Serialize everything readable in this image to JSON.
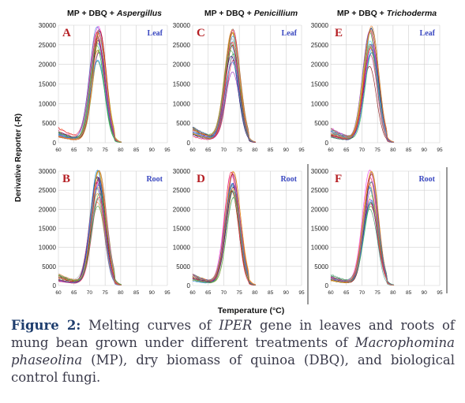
{
  "figure": {
    "ylabel": "Derivative Reporter (-R)",
    "xlabel": "Temperature (°C)"
  },
  "chart_data": [
    {
      "type": "line",
      "panel_letter": "A",
      "tissue": "Leaf",
      "column_title_prefix": "MP + DBQ + ",
      "column_title_fungus": "Aspergillus",
      "xlim": [
        60,
        95
      ],
      "ylim": [
        0,
        30000
      ],
      "x_ticks": [
        60,
        65,
        70,
        75,
        80,
        85,
        90,
        95
      ],
      "y_ticks": [
        0,
        5000,
        10000,
        15000,
        20000,
        25000,
        30000
      ],
      "peak_temperature": 72.8,
      "peak_max": 29500,
      "peak_min": 19000,
      "baseline_max": 4000,
      "grid": true
    },
    {
      "type": "line",
      "panel_letter": "C",
      "tissue": "Leaf",
      "column_title_prefix": "MP + DBQ + ",
      "column_title_fungus": "Penicillium",
      "xlim": [
        60,
        95
      ],
      "ylim": [
        0,
        30000
      ],
      "x_ticks": [
        60,
        65,
        70,
        75,
        80,
        85,
        90,
        95
      ],
      "y_ticks": [
        0,
        5000,
        10000,
        15000,
        20000,
        25000,
        30000
      ],
      "peak_temperature": 72.8,
      "peak_max": 29500,
      "peak_min": 17000,
      "baseline_max": 4200,
      "grid": true
    },
    {
      "type": "line",
      "panel_letter": "E",
      "tissue": "Leaf",
      "column_title_prefix": "MP + DBQ + ",
      "column_title_fungus": "Trichoderma",
      "xlim": [
        60,
        95
      ],
      "ylim": [
        0,
        30000
      ],
      "x_ticks": [
        60,
        65,
        70,
        75,
        80,
        85,
        90,
        95
      ],
      "y_ticks": [
        0,
        5000,
        10000,
        15000,
        20000,
        25000,
        30000
      ],
      "peak_temperature": 72.8,
      "peak_max": 29500,
      "peak_min": 18000,
      "baseline_max": 4000,
      "grid": true
    },
    {
      "type": "line",
      "panel_letter": "B",
      "tissue": "Root",
      "xlim": [
        60,
        95
      ],
      "ylim": [
        0,
        30000
      ],
      "x_ticks": [
        60,
        65,
        70,
        75,
        80,
        85,
        90,
        95
      ],
      "y_ticks": [
        0,
        5000,
        10000,
        15000,
        20000,
        25000,
        30000
      ],
      "peak_temperature": 72.8,
      "peak_max": 30500,
      "peak_min": 20000,
      "baseline_max": 3000,
      "grid": true
    },
    {
      "type": "line",
      "panel_letter": "D",
      "tissue": "Root",
      "xlim": [
        60,
        95
      ],
      "ylim": [
        0,
        30000
      ],
      "x_ticks": [
        60,
        65,
        70,
        75,
        80,
        85,
        90,
        95
      ],
      "y_ticks": [
        0,
        5000,
        10000,
        15000,
        20000,
        25000,
        30000
      ],
      "peak_temperature": 72.8,
      "peak_max": 30000,
      "peak_min": 20000,
      "baseline_max": 3000,
      "grid": true
    },
    {
      "type": "line",
      "panel_letter": "F",
      "tissue": "Root",
      "xlim": [
        60,
        95
      ],
      "ylim": [
        0,
        30000
      ],
      "x_ticks": [
        60,
        65,
        70,
        75,
        80,
        85,
        90,
        95
      ],
      "y_ticks": [
        0,
        5000,
        10000,
        15000,
        20000,
        25000,
        30000
      ],
      "peak_temperature": 72.8,
      "peak_max": 30000,
      "peak_min": 19000,
      "baseline_max": 3000,
      "grid": true
    }
  ],
  "colors": {
    "panel_letter": "#b51f24",
    "tissue_label": "#3a48c0",
    "grid": "#d0d0d0",
    "curve_palette": [
      "#e6194b",
      "#3cb44b",
      "#4363d8",
      "#f58231",
      "#911eb4",
      "#42d4f4",
      "#f032e6",
      "#bfef45",
      "#469990",
      "#9a6324",
      "#800000",
      "#808000",
      "#000075",
      "#a9a9a9",
      "#2e8b57",
      "#c71585",
      "#1e90ff",
      "#ff8c00"
    ]
  },
  "caption": {
    "label": "Figure 2:",
    "part1": " Melting curves of ",
    "gene": "IPER",
    "part2": " gene in leaves and roots of mung bean grown under different treatments of ",
    "species": "Macrophomina phaseolina",
    "part3": " (MP), dry biomass of quinoa (DBQ), and biological control fungi."
  }
}
